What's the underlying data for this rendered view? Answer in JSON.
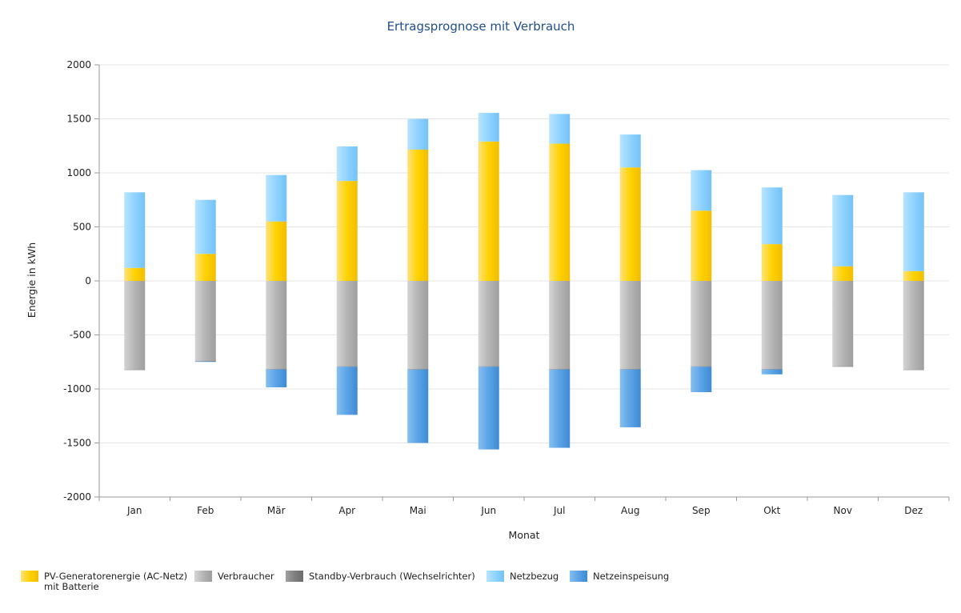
{
  "chart_data": {
    "type": "bar",
    "stacked": true,
    "title": "Ertragsprognose mit Verbrauch",
    "xlabel": "Monat",
    "ylabel": "Energie in kWh",
    "ylim": [
      -2000,
      2000
    ],
    "yticks": [
      2000,
      1500,
      1000,
      500,
      0,
      -500,
      -1000,
      -1500,
      -2000
    ],
    "grid": true,
    "legend_position": "bottom-left",
    "categories": [
      "Jan",
      "Feb",
      "Mär",
      "Apr",
      "Mai",
      "Jun",
      "Jul",
      "Aug",
      "Sep",
      "Okt",
      "Nov",
      "Dez"
    ],
    "series": [
      {
        "name": "PV-Generatorenergie (AC-Netz) mit Batterie",
        "name_lines": [
          "PV-Generatorenergie (AC-Netz)",
          "mit Batterie"
        ],
        "color": "#ffd200",
        "values": [
          120,
          250,
          550,
          925,
          1215,
          1290,
          1270,
          1050,
          650,
          340,
          135,
          90
        ]
      },
      {
        "name": "Verbraucher",
        "color": "#b0b0b0",
        "values": [
          -820,
          -740,
          -815,
          -790,
          -815,
          -790,
          -815,
          -815,
          -790,
          -815,
          -790,
          -820
        ]
      },
      {
        "name": "Standby-Verbrauch (Wechselrichter)",
        "color": "#808080",
        "values": [
          -5,
          -5,
          -5,
          -5,
          -5,
          -5,
          -5,
          -5,
          -5,
          -5,
          -5,
          -5
        ]
      },
      {
        "name": "Netzbezug",
        "color": "#8fd3ff",
        "values": [
          700,
          500,
          430,
          320,
          285,
          265,
          275,
          305,
          375,
          525,
          660,
          730
        ]
      },
      {
        "name": "Netzeinspeisung",
        "color": "#5aa3e6",
        "values": [
          0,
          -5,
          -165,
          -445,
          -680,
          -765,
          -725,
          -535,
          -235,
          -45,
          0,
          0
        ]
      }
    ]
  }
}
